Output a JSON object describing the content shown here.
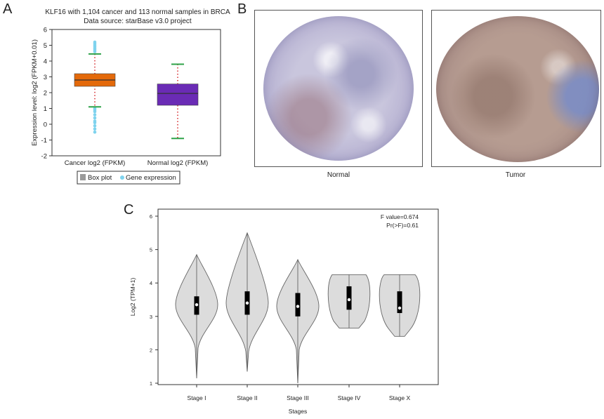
{
  "panels": {
    "a": {
      "letter": "A"
    },
    "b": {
      "letter": "B",
      "normal_label": "Normal",
      "tumor_label": "Tumor"
    },
    "c": {
      "letter": "C"
    }
  },
  "chart_data": [
    {
      "type": "box",
      "title": "KLF16 with 1,104 cancer and 113 normal samples in BRCA",
      "subtitle": "Data source: starBase v3.0 project",
      "xlabel": "",
      "ylabel": "Expression level: log2 (FPKM+0.01)",
      "ylim": [
        -2,
        6
      ],
      "yticks": [
        "-2",
        "-1",
        "0",
        "1",
        "2",
        "3",
        "4",
        "5",
        "6"
      ],
      "categories": [
        "Cancer log2 (FPKM)",
        "Normal log2 (FPKM)"
      ],
      "boxes": [
        {
          "category": "Cancer log2 (FPKM)",
          "min": 1.1,
          "q1": 2.4,
          "median": 2.8,
          "q3": 3.2,
          "max": 4.45,
          "color": "#e4690a",
          "outliers": [
            4.6,
            4.7,
            4.8,
            4.9,
            5.0,
            5.1,
            5.2,
            1.0,
            0.9,
            0.8,
            0.6,
            0.4,
            0.2,
            0.1,
            -0.1,
            -0.3,
            -0.5
          ]
        },
        {
          "category": "Normal log2 (FPKM)",
          "min": -0.9,
          "q1": 1.2,
          "median": 1.95,
          "q3": 2.55,
          "max": 3.8,
          "color": "#6a2bb5",
          "outliers": []
        }
      ],
      "legend": [
        "Box plot",
        "Gene expression"
      ],
      "legend_colors": {
        "box": "#9a9a9a",
        "points": "#7fd3ee"
      },
      "legend_position": "bottom",
      "grid": false
    },
    {
      "type": "violin",
      "xlabel": "Stages",
      "ylabel": "Log2 (TPM+1)",
      "ylim": [
        1,
        6
      ],
      "yticks": [
        "1",
        "2",
        "3",
        "4",
        "5",
        "6"
      ],
      "categories": [
        "Stage I",
        "Stage II",
        "Stage III",
        "Stage IV",
        "Stage X"
      ],
      "violins": [
        {
          "category": "Stage I",
          "min": 1.15,
          "max": 4.85,
          "q1": 3.05,
          "median": 3.35,
          "q3": 3.6
        },
        {
          "category": "Stage II",
          "min": 1.35,
          "max": 5.5,
          "q1": 3.05,
          "median": 3.4,
          "q3": 3.75
        },
        {
          "category": "Stage III",
          "min": 1.0,
          "max": 4.7,
          "q1": 3.0,
          "median": 3.3,
          "q3": 3.7
        },
        {
          "category": "Stage IV",
          "min": 2.65,
          "max": 4.25,
          "q1": 3.2,
          "median": 3.5,
          "q3": 3.9
        },
        {
          "category": "Stage X",
          "min": 2.4,
          "max": 4.25,
          "q1": 3.1,
          "median": 3.25,
          "q3": 3.75
        }
      ],
      "annotations": [
        "F value=0.674",
        "Pr(>F)=0.61"
      ],
      "fill_color": "#dcdcdc",
      "grid": false
    }
  ]
}
